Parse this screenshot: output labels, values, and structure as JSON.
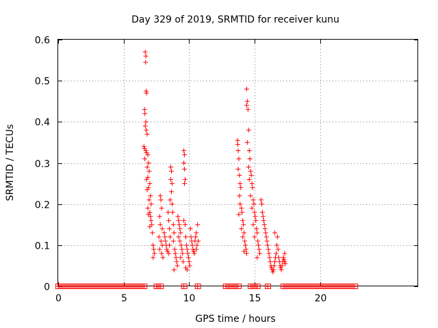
{
  "chart_data": {
    "type": "scatter",
    "title": "Day 329 of 2019, SRMTID for receiver kunu",
    "xlabel": "GPS time / hours",
    "ylabel": "SRMTID / TECUs",
    "xlim": [
      0,
      27.5
    ],
    "ylim": [
      0,
      0.6
    ],
    "xticks": [
      0,
      5,
      10,
      15,
      20
    ],
    "xtick_labels": [
      "0",
      "5",
      "10",
      "15",
      "20"
    ],
    "yticks": [
      0,
      0.1,
      0.2,
      0.3,
      0.4,
      0.5,
      0.6
    ],
    "ytick_labels": [
      "0",
      "0.1",
      "0.2",
      "0.3",
      "0.4",
      "0.5",
      "0.6"
    ],
    "grid": true,
    "marker": "+",
    "color": "#ff0000",
    "series": [
      {
        "name": "SRMTID",
        "points": [
          [
            6.65,
            0.57
          ],
          [
            6.7,
            0.56
          ],
          [
            6.68,
            0.545
          ],
          [
            6.72,
            0.475
          ],
          [
            6.75,
            0.47
          ],
          [
            6.6,
            0.43
          ],
          [
            6.62,
            0.42
          ],
          [
            6.7,
            0.4
          ],
          [
            6.65,
            0.39
          ],
          [
            6.72,
            0.38
          ],
          [
            6.8,
            0.37
          ],
          [
            6.55,
            0.34
          ],
          [
            6.6,
            0.335
          ],
          [
            6.7,
            0.33
          ],
          [
            6.75,
            0.325
          ],
          [
            6.62,
            0.31
          ],
          [
            6.85,
            0.32
          ],
          [
            6.9,
            0.3
          ],
          [
            6.8,
            0.29
          ],
          [
            6.95,
            0.28
          ],
          [
            6.85,
            0.265
          ],
          [
            6.75,
            0.26
          ],
          [
            7.0,
            0.25
          ],
          [
            6.9,
            0.24
          ],
          [
            6.8,
            0.235
          ],
          [
            7.05,
            0.22
          ],
          [
            6.95,
            0.21
          ],
          [
            7.1,
            0.2
          ],
          [
            6.85,
            0.19
          ],
          [
            7.0,
            0.18
          ],
          [
            7.05,
            0.17
          ],
          [
            6.9,
            0.175
          ],
          [
            7.1,
            0.16
          ],
          [
            7.15,
            0.15
          ],
          [
            7.0,
            0.145
          ],
          [
            7.2,
            0.13
          ],
          [
            7.25,
            0.1
          ],
          [
            7.3,
            0.09
          ],
          [
            7.35,
            0.08
          ],
          [
            7.25,
            0.07
          ],
          [
            7.8,
            0.22
          ],
          [
            7.85,
            0.21
          ],
          [
            7.9,
            0.19
          ],
          [
            7.75,
            0.17
          ],
          [
            7.8,
            0.15
          ],
          [
            7.95,
            0.14
          ],
          [
            7.7,
            0.12
          ],
          [
            7.85,
            0.11
          ],
          [
            7.95,
            0.1
          ],
          [
            7.75,
            0.09
          ],
          [
            7.9,
            0.08
          ],
          [
            8.0,
            0.07
          ],
          [
            8.1,
            0.13
          ],
          [
            8.15,
            0.12
          ],
          [
            8.2,
            0.11
          ],
          [
            8.25,
            0.1
          ],
          [
            8.3,
            0.09
          ],
          [
            8.35,
            0.085
          ],
          [
            8.4,
            0.18
          ],
          [
            8.45,
            0.16
          ],
          [
            8.5,
            0.14
          ],
          [
            8.55,
            0.12
          ],
          [
            8.5,
            0.1
          ],
          [
            8.45,
            0.08
          ],
          [
            8.6,
            0.29
          ],
          [
            8.65,
            0.28
          ],
          [
            8.6,
            0.26
          ],
          [
            8.7,
            0.25
          ],
          [
            8.65,
            0.23
          ],
          [
            8.55,
            0.21
          ],
          [
            8.7,
            0.2
          ],
          [
            8.75,
            0.18
          ],
          [
            8.8,
            0.15
          ],
          [
            8.85,
            0.13
          ],
          [
            8.8,
            0.11
          ],
          [
            8.9,
            0.09
          ],
          [
            8.95,
            0.08
          ],
          [
            9.0,
            0.07
          ],
          [
            9.05,
            0.06
          ],
          [
            9.1,
            0.05
          ],
          [
            8.85,
            0.04
          ],
          [
            9.15,
            0.17
          ],
          [
            9.2,
            0.16
          ],
          [
            9.25,
            0.15
          ],
          [
            9.3,
            0.14
          ],
          [
            9.35,
            0.13
          ],
          [
            9.2,
            0.12
          ],
          [
            9.3,
            0.11
          ],
          [
            9.4,
            0.1
          ],
          [
            9.45,
            0.09
          ],
          [
            9.5,
            0.08
          ],
          [
            9.35,
            0.07
          ],
          [
            9.55,
            0.06
          ],
          [
            9.6,
            0.33
          ],
          [
            9.65,
            0.32
          ],
          [
            9.6,
            0.3
          ],
          [
            9.65,
            0.285
          ],
          [
            9.7,
            0.26
          ],
          [
            9.65,
            0.25
          ],
          [
            9.6,
            0.16
          ],
          [
            9.7,
            0.15
          ],
          [
            9.75,
            0.12
          ],
          [
            9.8,
            0.1
          ],
          [
            9.85,
            0.09
          ],
          [
            9.9,
            0.08
          ],
          [
            9.95,
            0.07
          ],
          [
            10.0,
            0.06
          ],
          [
            10.05,
            0.05
          ],
          [
            9.75,
            0.045
          ],
          [
            9.85,
            0.04
          ],
          [
            10.1,
            0.14
          ],
          [
            10.15,
            0.12
          ],
          [
            10.2,
            0.11
          ],
          [
            10.25,
            0.1
          ],
          [
            10.3,
            0.09
          ],
          [
            10.35,
            0.085
          ],
          [
            10.4,
            0.08
          ],
          [
            10.45,
            0.11
          ],
          [
            10.5,
            0.12
          ],
          [
            10.55,
            0.13
          ],
          [
            10.6,
            0.1
          ],
          [
            10.65,
            0.15
          ],
          [
            10.55,
            0.09
          ],
          [
            10.7,
            0.11
          ],
          [
            13.7,
            0.355
          ],
          [
            13.72,
            0.345
          ],
          [
            13.75,
            0.33
          ],
          [
            13.8,
            0.31
          ],
          [
            13.75,
            0.285
          ],
          [
            13.85,
            0.27
          ],
          [
            13.9,
            0.25
          ],
          [
            13.95,
            0.24
          ],
          [
            13.85,
            0.22
          ],
          [
            13.9,
            0.2
          ],
          [
            14.0,
            0.19
          ],
          [
            14.05,
            0.18
          ],
          [
            13.8,
            0.175
          ],
          [
            14.1,
            0.16
          ],
          [
            14.15,
            0.15
          ],
          [
            14.0,
            0.14
          ],
          [
            14.2,
            0.13
          ],
          [
            14.1,
            0.12
          ],
          [
            14.25,
            0.11
          ],
          [
            14.3,
            0.1
          ],
          [
            14.35,
            0.09
          ],
          [
            14.2,
            0.085
          ],
          [
            14.4,
            0.08
          ],
          [
            14.4,
            0.48
          ],
          [
            14.45,
            0.45
          ],
          [
            14.4,
            0.44
          ],
          [
            14.5,
            0.43
          ],
          [
            14.55,
            0.38
          ],
          [
            14.45,
            0.35
          ],
          [
            14.6,
            0.33
          ],
          [
            14.65,
            0.31
          ],
          [
            14.55,
            0.29
          ],
          [
            14.7,
            0.28
          ],
          [
            14.75,
            0.27
          ],
          [
            14.6,
            0.26
          ],
          [
            14.8,
            0.25
          ],
          [
            14.85,
            0.24
          ],
          [
            14.7,
            0.22
          ],
          [
            14.9,
            0.21
          ],
          [
            14.95,
            0.2
          ],
          [
            14.8,
            0.19
          ],
          [
            15.0,
            0.18
          ],
          [
            15.05,
            0.17
          ],
          [
            15.1,
            0.16
          ],
          [
            14.9,
            0.15
          ],
          [
            15.15,
            0.14
          ],
          [
            15.2,
            0.13
          ],
          [
            15.0,
            0.12
          ],
          [
            15.25,
            0.11
          ],
          [
            15.3,
            0.1
          ],
          [
            15.35,
            0.09
          ],
          [
            15.4,
            0.08
          ],
          [
            15.2,
            0.07
          ],
          [
            15.5,
            0.21
          ],
          [
            15.55,
            0.2
          ],
          [
            15.6,
            0.18
          ],
          [
            15.65,
            0.17
          ],
          [
            15.7,
            0.16
          ],
          [
            15.75,
            0.15
          ],
          [
            15.8,
            0.14
          ],
          [
            15.85,
            0.13
          ],
          [
            15.9,
            0.12
          ],
          [
            15.95,
            0.11
          ],
          [
            16.0,
            0.1
          ],
          [
            16.05,
            0.09
          ],
          [
            16.1,
            0.08
          ],
          [
            16.15,
            0.07
          ],
          [
            16.2,
            0.06
          ],
          [
            16.25,
            0.05
          ],
          [
            16.3,
            0.045
          ],
          [
            16.35,
            0.04
          ],
          [
            16.4,
            0.035
          ],
          [
            16.45,
            0.04
          ],
          [
            16.5,
            0.05
          ],
          [
            16.55,
            0.06
          ],
          [
            16.6,
            0.07
          ],
          [
            16.65,
            0.08
          ],
          [
            16.7,
            0.1
          ],
          [
            16.75,
            0.12
          ],
          [
            16.55,
            0.13
          ],
          [
            16.8,
            0.09
          ],
          [
            16.85,
            0.07
          ],
          [
            16.9,
            0.06
          ],
          [
            16.95,
            0.05
          ],
          [
            17.0,
            0.045
          ],
          [
            17.05,
            0.04
          ],
          [
            17.1,
            0.05
          ],
          [
            17.15,
            0.06
          ],
          [
            17.2,
            0.07
          ],
          [
            17.25,
            0.065
          ],
          [
            17.3,
            0.06
          ],
          [
            17.35,
            0.055
          ],
          [
            17.3,
            0.08
          ]
        ],
        "zero_segments": [
          [
            0.0,
            6.6
          ],
          [
            7.5,
            7.85
          ],
          [
            9.6,
            9.65
          ],
          [
            10.65,
            10.7
          ],
          [
            12.8,
            13.8
          ],
          [
            14.7,
            15.25
          ],
          [
            16.0,
            16.05
          ],
          [
            17.2,
            22.7
          ]
        ]
      }
    ]
  }
}
